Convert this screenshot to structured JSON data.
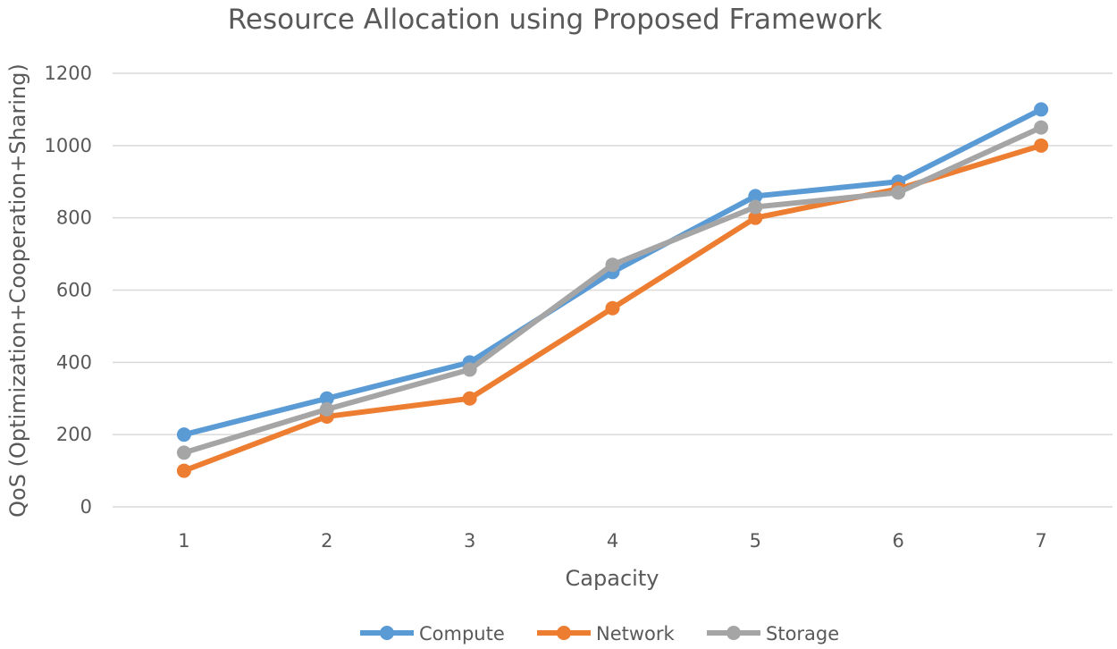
{
  "chart_data": {
    "type": "line",
    "title": "Resource Allocation using Proposed Framework",
    "xlabel": "Capacity",
    "ylabel": "QoS (Optimization+Cooperation+Sharing)",
    "categories": [
      "1",
      "2",
      "3",
      "4",
      "5",
      "6",
      "7"
    ],
    "ylim": [
      0,
      1200
    ],
    "yticks": [
      0,
      200,
      400,
      600,
      800,
      1000,
      1200
    ],
    "grid": true,
    "legend_position": "bottom",
    "series": [
      {
        "name": "Compute",
        "color": "#5b9bd5",
        "values": [
          200,
          300,
          400,
          650,
          860,
          900,
          1100
        ]
      },
      {
        "name": "Network",
        "color": "#ed7d31",
        "values": [
          100,
          250,
          300,
          550,
          800,
          880,
          1000
        ]
      },
      {
        "name": "Storage",
        "color": "#a5a5a5",
        "values": [
          150,
          270,
          380,
          670,
          830,
          870,
          1050
        ]
      }
    ]
  }
}
